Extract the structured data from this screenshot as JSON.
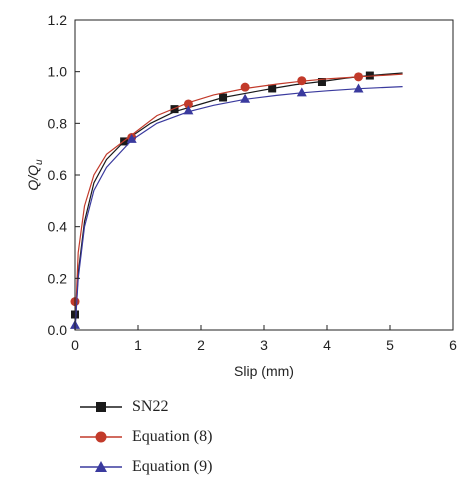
{
  "chart_data": {
    "type": "line",
    "xlabel": "Slip (mm)",
    "ylabel": "Q/Q",
    "ylabel_sub": "u",
    "xlim": [
      0,
      6
    ],
    "ylim": [
      0,
      1.2
    ],
    "x_ticks": [
      "0",
      "1",
      "2",
      "3",
      "4",
      "5",
      "6"
    ],
    "y_ticks": [
      "0.0",
      "0.2",
      "0.4",
      "0.6",
      "0.8",
      "1.0",
      "1.2"
    ],
    "grid": false,
    "legend_position": "bottom-left",
    "series": [
      {
        "name": "SN22",
        "color": "#1a1a1a",
        "marker": "square",
        "x": [
          0,
          0.78,
          1.58,
          2.35,
          3.13,
          3.92,
          4.68
        ],
        "y": [
          0.06,
          0.73,
          0.855,
          0.9,
          0.935,
          0.96,
          0.985
        ],
        "curve": {
          "x": [
            0,
            0.05,
            0.15,
            0.3,
            0.5,
            0.78,
            1.2,
            1.58,
            2.0,
            2.35,
            2.8,
            3.13,
            3.5,
            3.92,
            4.3,
            4.68,
            5.2
          ],
          "y": [
            0,
            0.22,
            0.42,
            0.57,
            0.66,
            0.73,
            0.8,
            0.845,
            0.875,
            0.9,
            0.92,
            0.935,
            0.95,
            0.962,
            0.975,
            0.985,
            0.995
          ]
        }
      },
      {
        "name": "Equation (8)",
        "color": "#c23a2a",
        "marker": "circle",
        "x": [
          0,
          0.9,
          1.8,
          2.7,
          3.6,
          4.5
        ],
        "y": [
          0.11,
          0.745,
          0.875,
          0.94,
          0.965,
          0.98
        ],
        "curve": {
          "x": [
            0,
            0.05,
            0.15,
            0.3,
            0.5,
            0.9,
            1.3,
            1.8,
            2.2,
            2.7,
            3.2,
            3.6,
            4.0,
            4.5,
            5.2
          ],
          "y": [
            0,
            0.3,
            0.48,
            0.6,
            0.68,
            0.755,
            0.83,
            0.88,
            0.91,
            0.935,
            0.952,
            0.963,
            0.972,
            0.98,
            0.99
          ]
        }
      },
      {
        "name": "Equation (9)",
        "color": "#3a3a9e",
        "marker": "triangle",
        "x": [
          0,
          0.9,
          1.8,
          2.7,
          3.6,
          4.5
        ],
        "y": [
          0.02,
          0.74,
          0.85,
          0.895,
          0.92,
          0.935
        ],
        "curve": {
          "x": [
            0,
            0.05,
            0.15,
            0.3,
            0.5,
            0.9,
            1.3,
            1.8,
            2.2,
            2.7,
            3.2,
            3.6,
            4.0,
            4.5,
            5.2
          ],
          "y": [
            0,
            0.2,
            0.4,
            0.54,
            0.63,
            0.735,
            0.8,
            0.845,
            0.87,
            0.893,
            0.908,
            0.918,
            0.926,
            0.934,
            0.942
          ]
        }
      }
    ]
  }
}
